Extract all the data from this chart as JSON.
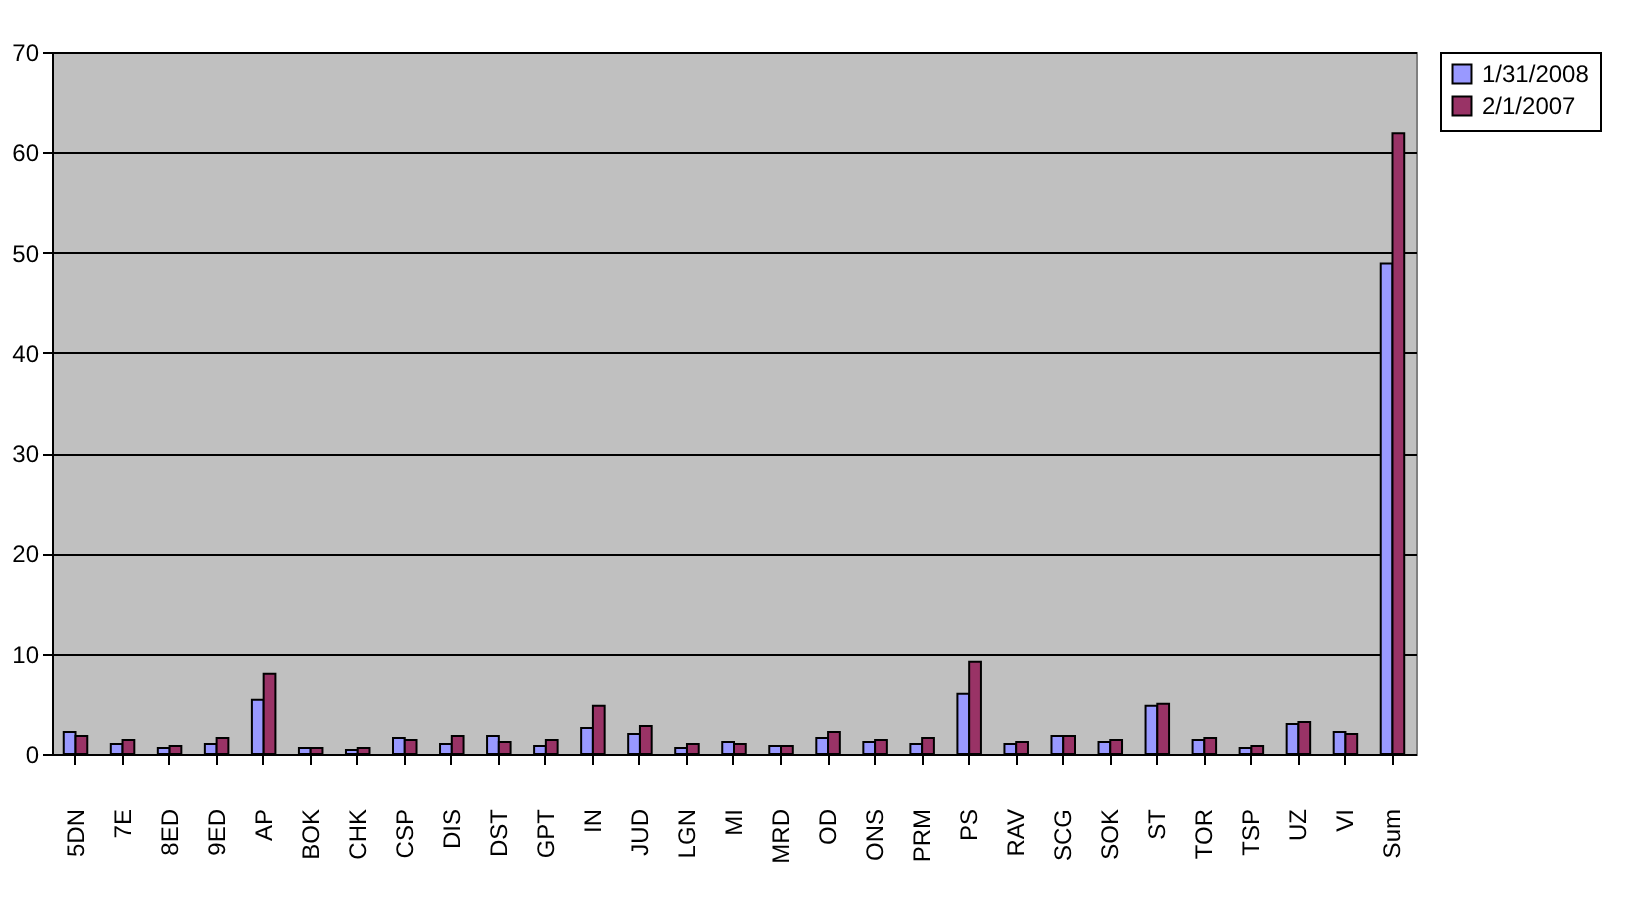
{
  "chart_data": {
    "type": "bar",
    "categories": [
      "5DN",
      "7E",
      "8ED",
      "9ED",
      "AP",
      "BOK",
      "CHK",
      "CSP",
      "DIS",
      "DST",
      "GPT",
      "IN",
      "JUD",
      "LGN",
      "MI",
      "MRD",
      "OD",
      "ONS",
      "PRM",
      "PS",
      "RAV",
      "SCG",
      "SOK",
      "ST",
      "TOR",
      "TSP",
      "UZ",
      "VI",
      "Sum"
    ],
    "series": [
      {
        "name": "1/31/2008",
        "color": "#9999ff",
        "values": [
          2.2,
          1.0,
          0.6,
          1.0,
          5.4,
          0.6,
          0.4,
          1.6,
          1.0,
          1.8,
          0.8,
          2.6,
          2.0,
          0.6,
          1.2,
          0.8,
          1.6,
          1.2,
          1.0,
          6.0,
          1.0,
          1.8,
          1.2,
          4.8,
          1.4,
          0.6,
          3.0,
          2.2,
          48.9
        ]
      },
      {
        "name": "2/1/2007",
        "color": "#993366",
        "values": [
          1.8,
          1.4,
          0.8,
          1.6,
          8.0,
          0.6,
          0.6,
          1.4,
          1.8,
          1.2,
          1.4,
          4.8,
          2.8,
          1.0,
          1.0,
          0.8,
          2.2,
          1.4,
          1.6,
          9.2,
          1.2,
          1.8,
          1.4,
          5.0,
          1.6,
          0.8,
          3.2,
          2.0,
          61.9
        ]
      }
    ],
    "ylim": [
      0,
      70
    ],
    "yticks": [
      0,
      10,
      20,
      30,
      40,
      50,
      60,
      70
    ],
    "grid": "y",
    "legend": "right"
  }
}
